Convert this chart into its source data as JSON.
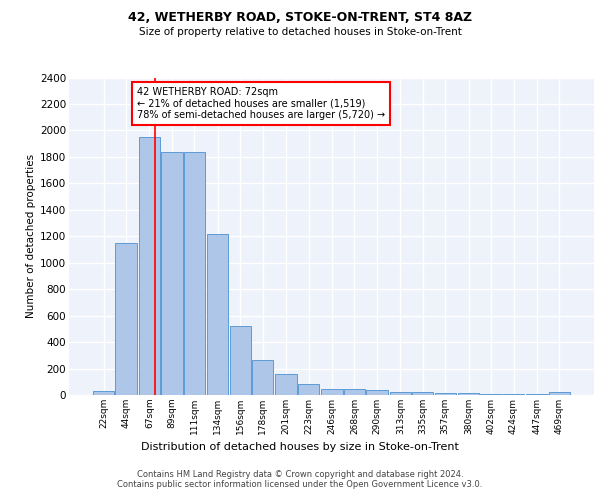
{
  "title1": "42, WETHERBY ROAD, STOKE-ON-TRENT, ST4 8AZ",
  "title2": "Size of property relative to detached houses in Stoke-on-Trent",
  "xlabel": "Distribution of detached houses by size in Stoke-on-Trent",
  "ylabel": "Number of detached properties",
  "categories": [
    "22sqm",
    "44sqm",
    "67sqm",
    "89sqm",
    "111sqm",
    "134sqm",
    "156sqm",
    "178sqm",
    "201sqm",
    "223sqm",
    "246sqm",
    "268sqm",
    "290sqm",
    "313sqm",
    "335sqm",
    "357sqm",
    "380sqm",
    "402sqm",
    "424sqm",
    "447sqm",
    "469sqm"
  ],
  "values": [
    30,
    1150,
    1950,
    1840,
    1840,
    1215,
    520,
    265,
    155,
    85,
    45,
    45,
    40,
    20,
    25,
    15,
    12,
    8,
    5,
    5,
    20
  ],
  "bar_color": "#aec6e8",
  "bar_edge_color": "#5b9bd5",
  "background_color": "#eef3fb",
  "grid_color": "#ffffff",
  "property_line_x": 72,
  "property_line_color": "red",
  "annotation_text": "42 WETHERBY ROAD: 72sqm\n← 21% of detached houses are smaller (1,519)\n78% of semi-detached houses are larger (5,720) →",
  "annotation_box_color": "white",
  "annotation_box_edge_color": "red",
  "ylim": [
    0,
    2400
  ],
  "yticks": [
    0,
    200,
    400,
    600,
    800,
    1000,
    1200,
    1400,
    1600,
    1800,
    2000,
    2200,
    2400
  ],
  "footer": "Contains HM Land Registry data © Crown copyright and database right 2024.\nContains public sector information licensed under the Open Government Licence v3.0.",
  "bin_width": 21
}
